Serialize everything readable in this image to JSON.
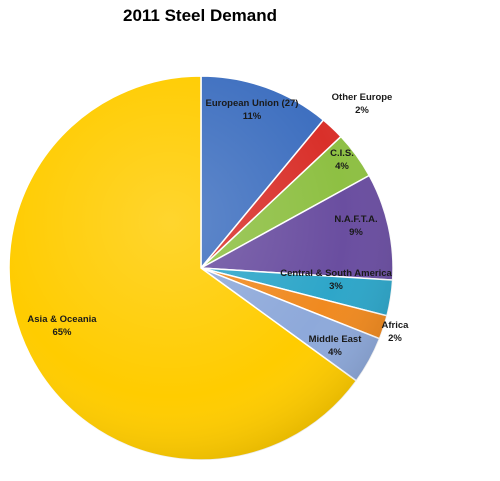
{
  "chart_data": {
    "type": "pie",
    "title": "2011 Steel Demand",
    "start_angle_deg": 0,
    "direction": "clockwise",
    "slices": [
      {
        "name": "European Union (27)",
        "value": 11,
        "label": "11%",
        "color": "#3f70c0"
      },
      {
        "name": "Other Europe",
        "value": 2,
        "label": "2%",
        "color": "#d9302a"
      },
      {
        "name": "C.I.S.",
        "value": 4,
        "label": "4%",
        "color": "#8ec043"
      },
      {
        "name": "N.A.F.T.A.",
        "value": 9,
        "label": "9%",
        "color": "#6a4ea0"
      },
      {
        "name": "Central & South America",
        "value": 3,
        "label": "3%",
        "color": "#2ea6c9"
      },
      {
        "name": "Africa",
        "value": 2,
        "label": "2%",
        "color": "#f08a20"
      },
      {
        "name": "Middle East",
        "value": 4,
        "label": "4%",
        "color": "#8ea9da"
      },
      {
        "name": "Asia & Oceania",
        "value": 65,
        "label": "65%",
        "color": "#ffcc00"
      }
    ],
    "legend": "none"
  }
}
